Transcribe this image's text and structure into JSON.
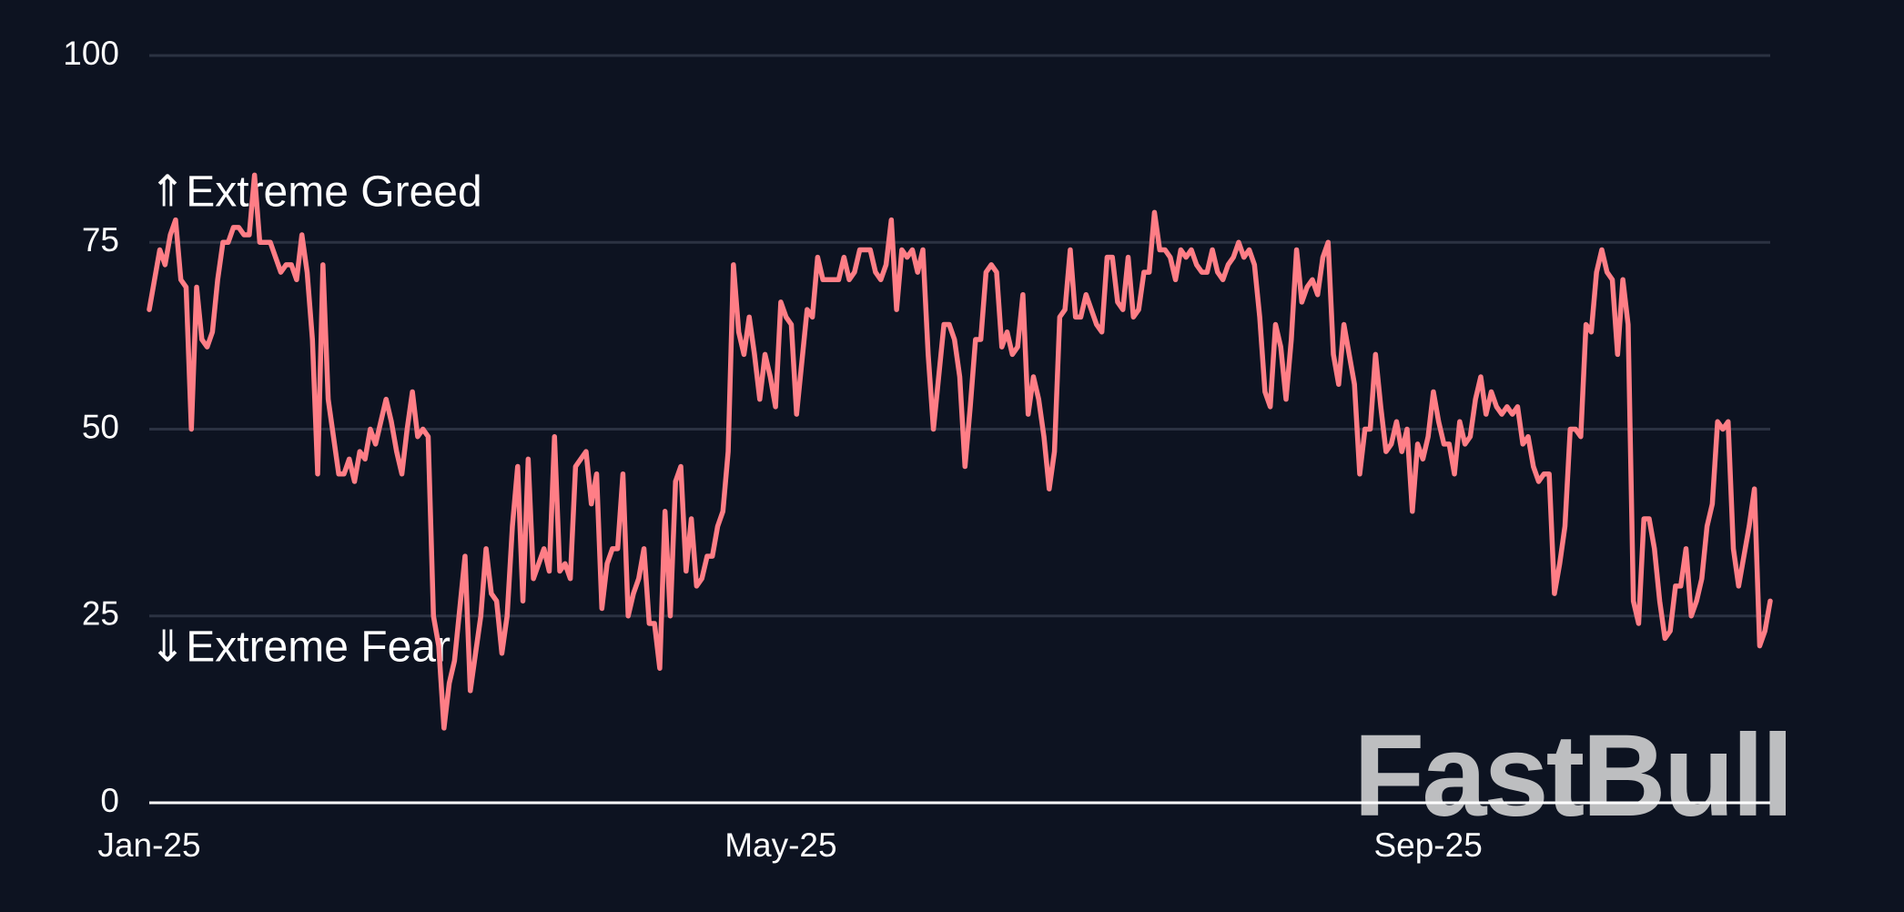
{
  "chart_data": {
    "type": "line",
    "color": "#ff7e86",
    "grid": true,
    "watermark": "FastBull",
    "annotations": [
      {
        "text": "⇑Extreme Greed"
      },
      {
        "text": "⇓Extreme Fear"
      }
    ],
    "xlim": [
      0,
      308
    ],
    "xticks": [
      {
        "value": 0,
        "label": "Jan-25"
      },
      {
        "value": 120,
        "label": "May-25"
      },
      {
        "value": 243,
        "label": "Sep-25"
      }
    ],
    "ylim": [
      0,
      100
    ],
    "yticks": [
      0,
      25,
      50,
      75,
      100
    ],
    "x": [
      0,
      1,
      2,
      3,
      4,
      5,
      6,
      7,
      8,
      9,
      10,
      11,
      12,
      13,
      14,
      15,
      16,
      17,
      18,
      19,
      20,
      21,
      22,
      23,
      24,
      25,
      26,
      27,
      28,
      29,
      30,
      31,
      32,
      33,
      34,
      35,
      36,
      37,
      38,
      39,
      40,
      41,
      42,
      43,
      44,
      45,
      46,
      47,
      48,
      49,
      50,
      51,
      52,
      53,
      54,
      55,
      56,
      57,
      58,
      59,
      60,
      61,
      62,
      63,
      64,
      65,
      66,
      67,
      68,
      69,
      70,
      71,
      72,
      73,
      74,
      75,
      76,
      77,
      78,
      79,
      80,
      81,
      82,
      83,
      84,
      85,
      86,
      87,
      88,
      89,
      90,
      91,
      92,
      93,
      94,
      95,
      96,
      97,
      98,
      99,
      100,
      101,
      102,
      103,
      104,
      105,
      106,
      107,
      108,
      109,
      110,
      111,
      112,
      113,
      114,
      115,
      116,
      117,
      118,
      119,
      120,
      121,
      122,
      123,
      124,
      125,
      126,
      127,
      128,
      129,
      130,
      131,
      132,
      133,
      134,
      135,
      136,
      137,
      138,
      139,
      140,
      141,
      142,
      143,
      144,
      145,
      146,
      147,
      148,
      149,
      150,
      151,
      152,
      153,
      154,
      155,
      156,
      157,
      158,
      159,
      160,
      161,
      162,
      163,
      164,
      165,
      166,
      167,
      168,
      169,
      170,
      171,
      172,
      173,
      174,
      175,
      176,
      177,
      178,
      179,
      180,
      181,
      182,
      183,
      184,
      185,
      186,
      187,
      188,
      189,
      190,
      191,
      192,
      193,
      194,
      195,
      196,
      197,
      198,
      199,
      200,
      201,
      202,
      203,
      204,
      205,
      206,
      207,
      208,
      209,
      210,
      211,
      212,
      213,
      214,
      215,
      216,
      217,
      218,
      219,
      220,
      221,
      222,
      223,
      224,
      225,
      226,
      227,
      228,
      229,
      230,
      231,
      232,
      233,
      234,
      235,
      236,
      237,
      238,
      239,
      240,
      241,
      242,
      243,
      244,
      245,
      246,
      247,
      248,
      249,
      250,
      251,
      252,
      253,
      254,
      255,
      256,
      257,
      258,
      259,
      260,
      261,
      262,
      263,
      264,
      265,
      266,
      267,
      268,
      269,
      270,
      271,
      272,
      273,
      274,
      275,
      276,
      277,
      278,
      279,
      280,
      281,
      282,
      283,
      284,
      285,
      286,
      287,
      288,
      289,
      290,
      291,
      292,
      293,
      294,
      295,
      296,
      297,
      298,
      299,
      300,
      301,
      302,
      303,
      304,
      305,
      306,
      307,
      308
    ],
    "values": [
      66,
      70,
      74,
      72,
      76,
      78,
      70,
      69,
      50,
      69,
      62,
      61,
      63,
      70,
      75,
      75,
      77,
      77,
      76,
      76,
      84,
      75,
      75,
      75,
      73,
      71,
      72,
      72,
      70,
      76,
      71,
      62,
      44,
      72,
      54,
      49,
      44,
      44,
      46,
      43,
      47,
      46,
      50,
      48,
      51,
      54,
      51,
      47,
      44,
      50,
      55,
      49,
      50,
      49,
      25,
      21,
      10,
      16,
      19,
      26,
      33,
      15,
      20,
      25,
      34,
      28,
      27,
      20,
      25,
      37,
      45,
      27,
      46,
      30,
      32,
      34,
      31,
      49,
      31,
      32,
      30,
      45,
      46,
      47,
      40,
      44,
      26,
      32,
      34,
      34,
      44,
      25,
      28,
      30,
      34,
      24,
      24,
      18,
      39,
      25,
      43,
      45,
      31,
      38,
      29,
      30,
      33,
      33,
      37,
      39,
      47,
      72,
      63,
      60,
      65,
      60,
      54,
      60,
      57,
      53,
      67,
      65,
      64,
      52,
      59,
      66,
      65,
      73,
      70,
      70,
      70,
      70,
      73,
      70,
      71,
      74,
      74,
      74,
      71,
      70,
      72,
      78,
      66,
      74,
      73,
      74,
      71,
      74,
      60,
      50,
      57,
      64,
      64,
      62,
      57,
      45,
      53,
      62,
      62,
      71,
      72,
      71,
      61,
      63,
      60,
      61,
      68,
      52,
      57,
      54,
      49,
      42,
      47,
      65,
      66,
      74,
      65,
      65,
      68,
      66,
      64,
      63,
      73,
      73,
      67,
      66,
      73,
      65,
      66,
      71,
      71,
      79,
      74,
      74,
      73,
      70,
      74,
      73,
      74,
      72,
      71,
      71,
      74,
      71,
      70,
      72,
      73,
      75,
      73,
      74,
      72,
      65,
      55,
      53,
      64,
      61,
      54,
      62,
      74,
      67,
      69,
      70,
      68,
      73,
      75,
      60,
      56,
      64,
      60,
      56,
      44,
      50,
      50,
      60,
      53,
      47,
      48,
      51,
      47,
      50,
      39,
      48,
      46,
      49,
      55,
      51,
      48,
      48,
      44,
      51,
      48,
      49,
      54,
      57,
      52,
      55,
      53,
      52,
      53,
      52,
      53,
      48,
      49,
      45,
      43,
      44,
      44,
      28,
      32,
      37,
      50,
      50,
      49,
      64,
      63,
      71,
      74,
      71,
      70,
      60,
      70,
      64,
      27,
      24,
      38,
      38,
      34,
      27,
      22,
      23,
      29,
      29,
      34,
      25,
      27,
      30,
      37,
      40,
      51,
      50,
      51,
      34,
      29,
      33,
      37,
      42,
      21,
      23,
      27
    ]
  }
}
